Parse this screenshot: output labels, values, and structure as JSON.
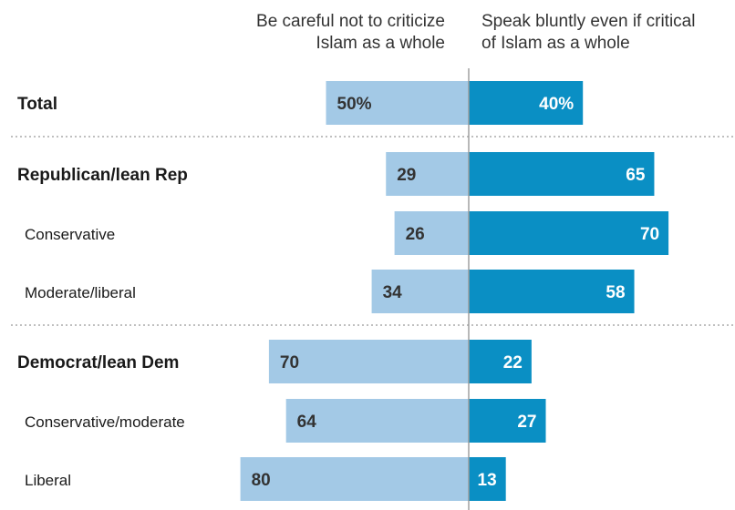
{
  "headers": {
    "left": [
      "Be careful not to criticize",
      "Islam as a whole"
    ],
    "right": [
      "Speak bluntly even if critical",
      "of Islam as a whole"
    ]
  },
  "colors": {
    "left_bar": "#a3c9e6",
    "right_bar": "#0a8fc4",
    "left_label": "#333333",
    "right_label": "#ffffff",
    "axis": "#999999",
    "divider": "#aaaaaa"
  },
  "chart_data": {
    "type": "bar",
    "orientation": "horizontal-diverging",
    "title": "",
    "xlabel": "",
    "ylabel": "",
    "xlim": [
      -80,
      80
    ],
    "grid": false,
    "legend": "none",
    "categories": [
      "Total",
      "Republican/lean Rep",
      "Conservative",
      "Moderate/liberal",
      "Democrat/lean Dem",
      "Conservative/moderate",
      "Liberal"
    ],
    "category_bold": [
      true,
      true,
      false,
      false,
      true,
      false,
      false
    ],
    "value_labels_left": [
      "50%",
      "29",
      "26",
      "34",
      "70",
      "64",
      "80"
    ],
    "value_labels_right": [
      "40%",
      "65",
      "70",
      "58",
      "22",
      "27",
      "13"
    ],
    "series": [
      {
        "name": "Be careful not to criticize Islam as a whole",
        "side": "left",
        "values": [
          50,
          29,
          26,
          34,
          70,
          64,
          80
        ]
      },
      {
        "name": "Speak bluntly even if critical of Islam as a whole",
        "side": "right",
        "values": [
          40,
          65,
          70,
          58,
          22,
          27,
          13
        ]
      }
    ],
    "dividers_after": [
      0,
      3
    ]
  }
}
